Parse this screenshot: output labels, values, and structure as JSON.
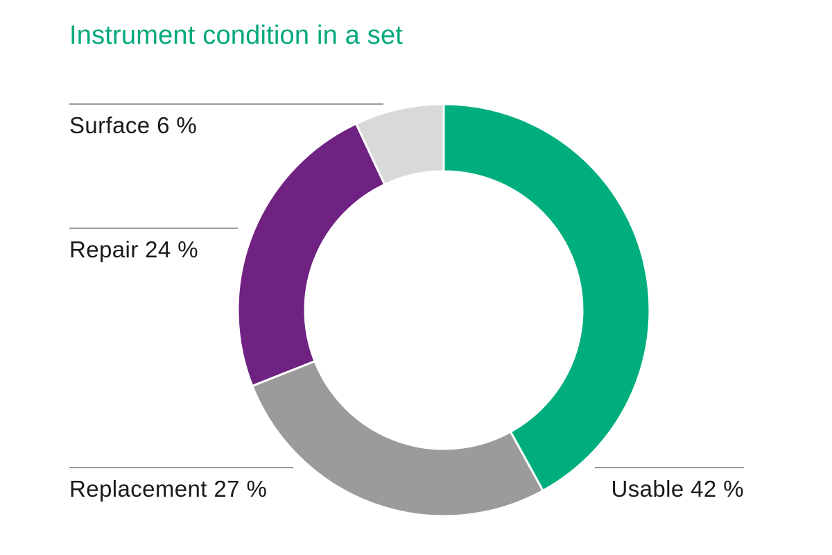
{
  "title": "Instrument condition in a set",
  "title_color": "#00A97C",
  "labels": {
    "surface": "Surface 6 %",
    "repair": "Repair 24 %",
    "replacement": "Replacement 27 %",
    "usable": "Usable 42 %"
  },
  "chart_data": {
    "type": "pie",
    "subtype": "donut",
    "title": "Instrument condition in a set",
    "segments": [
      {
        "label": "Usable",
        "value": 42,
        "unit": "%",
        "color": "#00AE7D"
      },
      {
        "label": "Replacement",
        "value": 27,
        "unit": "%",
        "color": "#9B9B9B"
      },
      {
        "label": "Repair",
        "value": 24,
        "unit": "%",
        "color": "#6F2282"
      },
      {
        "label": "Surface",
        "value": 6,
        "unit": "%",
        "color": "#D9D9D9"
      }
    ],
    "start_angle_deg": 0,
    "direction": "clockwise",
    "separator_color": "#FFFFFF",
    "legend_position": "callouts",
    "hole": true
  }
}
